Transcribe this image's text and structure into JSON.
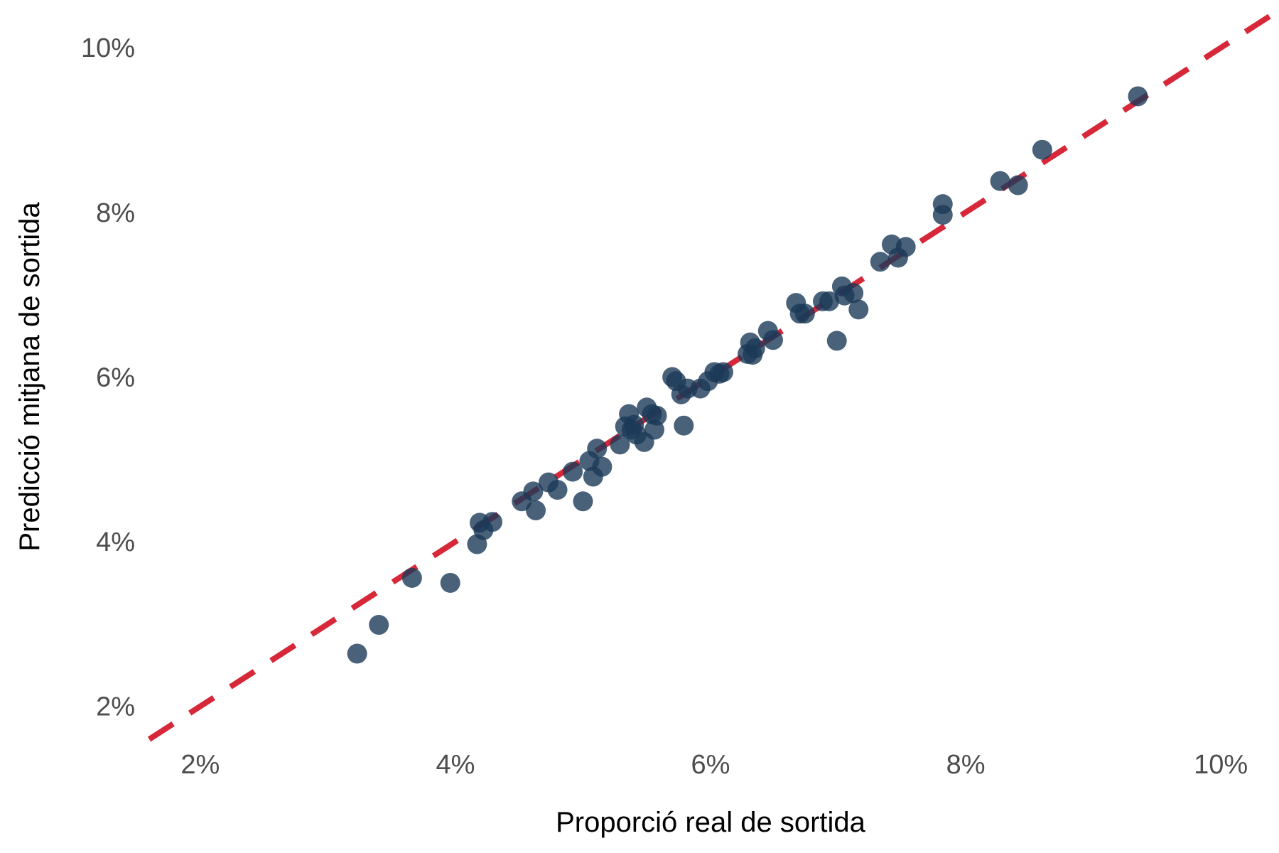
{
  "chart_data": {
    "type": "scatter",
    "xlabel": "Proporció real de sortida",
    "ylabel": "Predicció mitjana de sortida",
    "xlim": [
      1.6,
      10.4
    ],
    "ylim": [
      1.6,
      10.45
    ],
    "x_ticks": [
      2,
      4,
      6,
      8,
      10
    ],
    "y_ticks": [
      2,
      4,
      6,
      8,
      10
    ],
    "x_tick_labels": [
      "2%",
      "4%",
      "6%",
      "8%",
      "10%"
    ],
    "y_tick_labels": [
      "2%",
      "4%",
      "6%",
      "8%",
      "10%"
    ],
    "grid": false,
    "reference_line": {
      "style": "dashed",
      "slope": 1,
      "intercept": 0,
      "color": "#d62839"
    },
    "point_color": "#1b3a57",
    "points": [
      {
        "x": 3.23,
        "y": 2.64
      },
      {
        "x": 3.4,
        "y": 2.99
      },
      {
        "x": 3.66,
        "y": 3.56
      },
      {
        "x": 3.96,
        "y": 3.5
      },
      {
        "x": 4.17,
        "y": 3.97
      },
      {
        "x": 4.19,
        "y": 4.23
      },
      {
        "x": 4.22,
        "y": 4.14
      },
      {
        "x": 4.29,
        "y": 4.24
      },
      {
        "x": 4.52,
        "y": 4.49
      },
      {
        "x": 4.61,
        "y": 4.61
      },
      {
        "x": 4.63,
        "y": 4.38
      },
      {
        "x": 4.73,
        "y": 4.72
      },
      {
        "x": 4.8,
        "y": 4.63
      },
      {
        "x": 4.92,
        "y": 4.85
      },
      {
        "x": 5.0,
        "y": 4.49
      },
      {
        "x": 5.05,
        "y": 4.98
      },
      {
        "x": 5.08,
        "y": 4.79
      },
      {
        "x": 5.11,
        "y": 5.13
      },
      {
        "x": 5.15,
        "y": 4.91
      },
      {
        "x": 5.29,
        "y": 5.18
      },
      {
        "x": 5.33,
        "y": 5.4
      },
      {
        "x": 5.36,
        "y": 5.55
      },
      {
        "x": 5.38,
        "y": 5.36
      },
      {
        "x": 5.4,
        "y": 5.42
      },
      {
        "x": 5.42,
        "y": 5.3
      },
      {
        "x": 5.48,
        "y": 5.21
      },
      {
        "x": 5.5,
        "y": 5.63
      },
      {
        "x": 5.54,
        "y": 5.55
      },
      {
        "x": 5.56,
        "y": 5.36
      },
      {
        "x": 5.58,
        "y": 5.53
      },
      {
        "x": 5.7,
        "y": 6.0
      },
      {
        "x": 5.73,
        "y": 5.95
      },
      {
        "x": 5.77,
        "y": 5.79
      },
      {
        "x": 5.79,
        "y": 5.41
      },
      {
        "x": 5.82,
        "y": 5.86
      },
      {
        "x": 5.92,
        "y": 5.86
      },
      {
        "x": 5.98,
        "y": 5.95
      },
      {
        "x": 6.03,
        "y": 6.06
      },
      {
        "x": 6.07,
        "y": 6.04
      },
      {
        "x": 6.1,
        "y": 6.06
      },
      {
        "x": 6.29,
        "y": 6.28
      },
      {
        "x": 6.31,
        "y": 6.42
      },
      {
        "x": 6.33,
        "y": 6.27
      },
      {
        "x": 6.35,
        "y": 6.35
      },
      {
        "x": 6.45,
        "y": 6.56
      },
      {
        "x": 6.49,
        "y": 6.45
      },
      {
        "x": 6.67,
        "y": 6.9
      },
      {
        "x": 6.7,
        "y": 6.77
      },
      {
        "x": 6.74,
        "y": 6.77
      },
      {
        "x": 6.88,
        "y": 6.92
      },
      {
        "x": 6.93,
        "y": 6.92
      },
      {
        "x": 6.99,
        "y": 6.44
      },
      {
        "x": 7.03,
        "y": 7.1
      },
      {
        "x": 7.05,
        "y": 6.99
      },
      {
        "x": 7.12,
        "y": 7.02
      },
      {
        "x": 7.16,
        "y": 6.82
      },
      {
        "x": 7.33,
        "y": 7.4
      },
      {
        "x": 7.42,
        "y": 7.61
      },
      {
        "x": 7.47,
        "y": 7.45
      },
      {
        "x": 7.53,
        "y": 7.58
      },
      {
        "x": 7.82,
        "y": 8.1
      },
      {
        "x": 7.82,
        "y": 7.97
      },
      {
        "x": 8.27,
        "y": 8.38
      },
      {
        "x": 8.41,
        "y": 8.33
      },
      {
        "x": 8.6,
        "y": 8.76
      },
      {
        "x": 9.35,
        "y": 9.41
      }
    ]
  }
}
